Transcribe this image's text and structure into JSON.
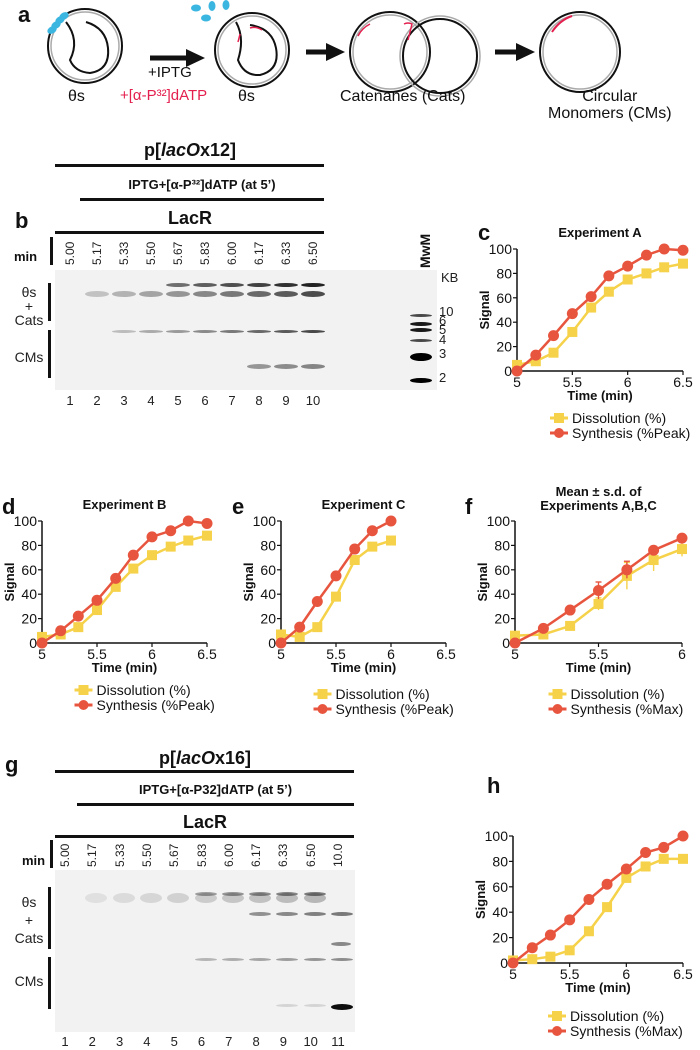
{
  "panel_a": {
    "label": "a",
    "steps": [
      {
        "caption": "θs"
      },
      {
        "caption": "θs"
      },
      {
        "caption": "Catenanes (Cats)"
      },
      {
        "caption_line1": "Circular",
        "caption_line2": "Monomers (CMs)"
      }
    ],
    "arrow_label_1": "+IPTG",
    "arrow_label_2": "+[α-P³²]dATP"
  },
  "panel_b": {
    "label": "b",
    "plasmid": {
      "prefix": "p[",
      "italic": "lacO",
      "suffix": "x12]"
    },
    "treatment": "IPTG+[α-P³²]dATP (at 5’)",
    "protein": "LacR",
    "min_label": "min",
    "times": [
      "5.00",
      "5.17",
      "5.33",
      "5.50",
      "5.67",
      "5.83",
      "6.00",
      "6.17",
      "6.33",
      "6.50"
    ],
    "lanes": [
      "1",
      "2",
      "3",
      "4",
      "5",
      "6",
      "7",
      "8",
      "9",
      "10"
    ],
    "marker_label": "MwM",
    "kb_label": "KB",
    "kb_sizes": [
      "10",
      "6",
      "5",
      "4",
      "3",
      "2"
    ],
    "side_labels": {
      "top_1": "θs",
      "top_2": "+",
      "top_3": "Cats",
      "bottom": "CMs"
    }
  },
  "panel_g": {
    "label": "g",
    "plasmid": {
      "prefix": "p[",
      "italic": "lacO",
      "suffix": "x16]"
    },
    "treatment": "IPTG+[α-P32]dATP (at 5’)",
    "protein": "LacR",
    "min_label": "min",
    "times": [
      "5.00",
      "5.17",
      "5.33",
      "5.50",
      "5.67",
      "5.83",
      "6.00",
      "6.17",
      "6.33",
      "6.50",
      "10.0"
    ],
    "lanes": [
      "1",
      "2",
      "3",
      "4",
      "5",
      "6",
      "7",
      "8",
      "9",
      "10",
      "11"
    ],
    "side_labels": {
      "top_1": "θs",
      "top_2": "+",
      "top_3": "Cats",
      "bottom": "CMs"
    }
  },
  "colors": {
    "dissolution": "#f5d24a",
    "synthesis": "#e8553f",
    "radiolabel": "#e4204f",
    "axis": "#111111"
  },
  "chart_data": [
    {
      "id": "c",
      "panel_label": "c",
      "type": "line",
      "title": "Experiment A",
      "xlabel": "Time (min)",
      "ylabel": "Signal",
      "xlim": [
        5,
        6.5
      ],
      "ylim": [
        0,
        100
      ],
      "xticks": [
        "5",
        "5.5",
        "6",
        "6.5"
      ],
      "yticks": [
        "0",
        "20",
        "40",
        "60",
        "80",
        "100"
      ],
      "x": [
        5.0,
        5.17,
        5.33,
        5.5,
        5.67,
        5.83,
        6.0,
        6.17,
        6.33,
        6.5
      ],
      "series": [
        {
          "name": "Dissolution (%)",
          "marker": "square",
          "values": [
            5,
            8,
            15,
            32,
            52,
            65,
            75,
            80,
            85,
            88
          ]
        },
        {
          "name": "Synthesis (%Peak)",
          "marker": "circle",
          "values": [
            0,
            13,
            29,
            47,
            61,
            78,
            86,
            95,
            100,
            99
          ]
        }
      ],
      "legend": "bottom"
    },
    {
      "id": "d",
      "panel_label": "d",
      "type": "line",
      "title": "Experiment B",
      "xlabel": "Time (min)",
      "ylabel": "Signal",
      "xlim": [
        5,
        6.5
      ],
      "ylim": [
        0,
        100
      ],
      "xticks": [
        "5",
        "5.5",
        "6",
        "6.5"
      ],
      "yticks": [
        "0",
        "20",
        "40",
        "60",
        "80",
        "100"
      ],
      "x": [
        5.0,
        5.17,
        5.33,
        5.5,
        5.67,
        5.83,
        6.0,
        6.17,
        6.33,
        6.5
      ],
      "series": [
        {
          "name": "Dissolution (%)",
          "marker": "square",
          "values": [
            5,
            7,
            13,
            27,
            46,
            61,
            72,
            79,
            84,
            88
          ]
        },
        {
          "name": "Synthesis (%Peak)",
          "marker": "circle",
          "values": [
            0,
            10,
            22,
            35,
            53,
            72,
            87,
            92,
            100,
            98
          ]
        }
      ],
      "legend": "bottom"
    },
    {
      "id": "e",
      "panel_label": "e",
      "type": "line",
      "title": "Experiment C",
      "xlabel": "Time (min)",
      "ylabel": "Signal",
      "xlim": [
        5,
        6.5
      ],
      "ylim": [
        0,
        100
      ],
      "xticks": [
        "5",
        "5.5",
        "6",
        "6.5"
      ],
      "yticks": [
        "0",
        "20",
        "40",
        "60",
        "80",
        "100"
      ],
      "x": [
        5.0,
        5.17,
        5.33,
        5.5,
        5.67,
        5.83,
        6.0
      ],
      "series": [
        {
          "name": "Dissolution (%)",
          "marker": "square",
          "values": [
            7,
            5,
            13,
            38,
            68,
            79,
            84
          ]
        },
        {
          "name": "Synthesis (%Peak)",
          "marker": "circle",
          "values": [
            0,
            13,
            34,
            55,
            77,
            92,
            100
          ]
        }
      ],
      "legend": "bottom"
    },
    {
      "id": "f",
      "panel_label": "f",
      "type": "line",
      "title": "Mean ± s.d. of",
      "title_line2": "Experiments A,B,C",
      "xlabel": "Time (min)",
      "ylabel": "Signal",
      "xlim": [
        5,
        6
      ],
      "ylim": [
        0,
        100
      ],
      "xticks": [
        "5",
        "5.5",
        "6"
      ],
      "yticks": [
        "0",
        "20",
        "40",
        "60",
        "80",
        "100"
      ],
      "x": [
        5.0,
        5.17,
        5.33,
        5.5,
        5.67,
        5.83,
        6.0
      ],
      "series": [
        {
          "name": "Dissolution (%)",
          "marker": "square",
          "values": [
            6,
            7,
            14,
            32,
            55,
            68,
            77
          ],
          "sd": [
            1,
            1,
            1,
            5,
            11,
            9,
            6
          ]
        },
        {
          "name": "Synthesis (%Max)",
          "marker": "circle",
          "values": [
            0,
            12,
            27,
            43,
            60,
            76,
            86
          ],
          "sd": [
            0,
            1,
            3,
            7,
            7,
            3,
            1
          ]
        }
      ],
      "legend": "bottom"
    },
    {
      "id": "h",
      "panel_label": "h",
      "type": "line",
      "title": "",
      "xlabel": "Time (min)",
      "ylabel": "Signal",
      "xlim": [
        5,
        6.5
      ],
      "ylim": [
        0,
        100
      ],
      "xticks": [
        "5",
        "5.5",
        "6",
        "6.5"
      ],
      "yticks": [
        "0",
        "20",
        "40",
        "60",
        "80",
        "100"
      ],
      "x": [
        5.0,
        5.17,
        5.33,
        5.5,
        5.67,
        5.83,
        6.0,
        6.17,
        6.33,
        6.5
      ],
      "series": [
        {
          "name": "Dissolution (%)",
          "marker": "square",
          "values": [
            2,
            3,
            5,
            10,
            25,
            44,
            67,
            76,
            82,
            82
          ]
        },
        {
          "name": "Synthesis (%Max)",
          "marker": "circle",
          "values": [
            0,
            12,
            22,
            34,
            50,
            62,
            74,
            87,
            91,
            100
          ]
        }
      ],
      "legend": "bottom"
    }
  ]
}
